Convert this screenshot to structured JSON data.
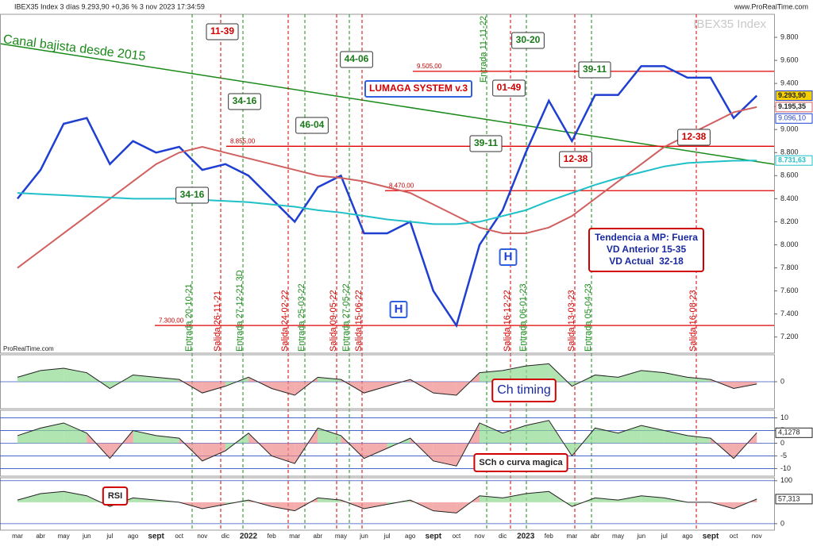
{
  "header": {
    "title": "IBEX35 Index 3 días 9.293,90 +0,36 % 3 nov 2023 17:34:59",
    "site": "www.ProRealTime.com",
    "watermark": "IBEX35 Index",
    "credit": "ProRealTime.com"
  },
  "chart_data": [
    {
      "type": "line",
      "categories": [
        "mar",
        "abr",
        "may",
        "jun",
        "jul",
        "ago",
        "sept",
        "oct",
        "nov",
        "dic",
        "2022",
        "feb",
        "mar",
        "abr",
        "may",
        "jun",
        "jul",
        "ago",
        "sept",
        "oct",
        "nov",
        "dic",
        "2023",
        "feb",
        "mar",
        "abr",
        "may",
        "jun",
        "jul",
        "ago",
        "sept",
        "oct",
        "nov"
      ],
      "series": [
        {
          "color": "#1f3fd0",
          "values": [
            8400,
            8650,
            9050,
            9100,
            8700,
            8900,
            8800,
            8850,
            8650,
            8700,
            8600,
            8400,
            8200,
            8500,
            8600,
            8100,
            8100,
            8200,
            7600,
            7300,
            8000,
            8300,
            8800,
            9250,
            8900,
            9300,
            9300,
            9550,
            9550,
            9450,
            9450,
            9100,
            9293.9
          ],
          "value_labels": [
            null,
            null,
            null,
            null,
            null,
            null,
            null,
            null,
            null,
            null,
            null,
            null,
            null,
            null,
            null,
            null,
            null,
            null,
            null,
            null,
            null,
            null,
            null,
            null,
            null,
            null,
            null,
            null,
            null,
            null,
            null,
            null,
            "9.293,90"
          ]
        },
        {
          "color": "#d06060",
          "values": [
            7800,
            7950,
            8100,
            8250,
            8400,
            8550,
            8700,
            8800,
            8850,
            8800,
            8750,
            8700,
            8650,
            8600,
            8580,
            8550,
            8500,
            8450,
            8350,
            8250,
            8150,
            8100,
            8100,
            8150,
            8250,
            8400,
            8550,
            8700,
            8850,
            8950,
            9050,
            9150,
            9195.35
          ],
          "value_labels": [
            null,
            null,
            null,
            null,
            null,
            null,
            null,
            null,
            null,
            null,
            null,
            null,
            null,
            null,
            null,
            null,
            null,
            null,
            null,
            null,
            null,
            null,
            null,
            null,
            null,
            null,
            null,
            null,
            null,
            null,
            null,
            null,
            "9.195,35"
          ]
        },
        {
          "color": "#20c0c8",
          "values": [
            8450,
            8440,
            8430,
            8420,
            8410,
            8400,
            8400,
            8400,
            8390,
            8380,
            8370,
            8350,
            8330,
            8300,
            8280,
            8250,
            8220,
            8200,
            8180,
            8180,
            8200,
            8250,
            8300,
            8380,
            8450,
            8520,
            8580,
            8630,
            8680,
            8710,
            8720,
            8730,
            8731.63
          ],
          "value_labels": [
            null,
            null,
            null,
            null,
            null,
            null,
            null,
            null,
            null,
            null,
            null,
            null,
            null,
            null,
            null,
            null,
            null,
            null,
            null,
            null,
            null,
            null,
            null,
            null,
            null,
            null,
            null,
            null,
            null,
            null,
            null,
            null,
            "8.731,63"
          ]
        }
      ],
      "ylim": [
        7060,
        10000
      ],
      "yticks": [
        {
          "value": 7200,
          "label": "7.200"
        },
        {
          "value": 7400,
          "label": "7.400"
        },
        {
          "value": 7600,
          "label": "7.600"
        },
        {
          "value": 7800,
          "label": "7.800"
        },
        {
          "value": 8000,
          "label": "8.000"
        },
        {
          "value": 8200,
          "label": "8.200"
        },
        {
          "value": 8400,
          "label": "8.400"
        },
        {
          "value": 8600,
          "label": "8.600"
        },
        {
          "value": 8800,
          "label": "8.800"
        },
        {
          "value": 9000,
          "label": "9.000"
        },
        {
          "value": 9200,
          "label": "9.200"
        },
        {
          "value": 9400,
          "label": "9.400"
        },
        {
          "value": 9600,
          "label": "9.600"
        },
        {
          "value": 9800,
          "label": "9.800"
        }
      ],
      "levels": [
        {
          "value": 9505,
          "label": "9.505,00"
        },
        {
          "value": 8855,
          "label": "8.855,00"
        },
        {
          "value": 8470,
          "label": "8.470,00"
        },
        {
          "value": 7300,
          "label": "7.300,00"
        }
      ],
      "price_labels": [
        {
          "value": 9096.1,
          "label": "9.096,10"
        }
      ],
      "annotations": [
        {
          "text": "Canal bajista desde 2015",
          "color": "#1a8a1a"
        },
        {
          "text": "11-39",
          "color": "#d00000"
        },
        {
          "text": "34-16",
          "color": "#1a7a1a"
        },
        {
          "text": "46-04",
          "color": "#1a7a1a"
        },
        {
          "text": "44-06",
          "color": "#1a7a1a"
        },
        {
          "text": "30-20",
          "color": "#1a7a1a"
        },
        {
          "text": "39-11",
          "color": "#1a7a1a"
        },
        {
          "text": "01-49",
          "color": "#d00000"
        },
        {
          "text": "LUMAGA SYSTEM v.3",
          "color": "#d00000"
        },
        {
          "text": "39-11",
          "color": "#1a7a1a"
        },
        {
          "text": "12-38",
          "color": "#d00000"
        },
        {
          "text": "12-38",
          "color": "#d00000"
        },
        {
          "text": "34-16",
          "color": "#1a7a1a"
        },
        {
          "text": "H",
          "color": "#1f3fd0"
        },
        {
          "text": "H",
          "color": "#1f3fd0"
        }
      ],
      "info_box": [
        "Tendencia a MP: Fuera",
        "VD Anterior 15-35",
        "VD Actual  32-18"
      ],
      "signals": [
        {
          "label": "Entrada 20-10-21",
          "color": "#1a8a1a"
        },
        {
          "label": "Salida 26-11-21",
          "color": "#d00000"
        },
        {
          "label": "Entrada 27-12-21 3D",
          "color": "#1a8a1a"
        },
        {
          "label": "Salida 24-02-22",
          "color": "#d00000"
        },
        {
          "label": "Entrada 25-03-22",
          "color": "#1a8a1a"
        },
        {
          "label": "Salida 09-05-22",
          "color": "#d00000"
        },
        {
          "label": "Entrada 27-05-22",
          "color": "#1a8a1a"
        },
        {
          "label": "Salida 15-06-22",
          "color": "#d00000"
        },
        {
          "label": "Entrada 11-11-22",
          "color": "#1a8a1a"
        },
        {
          "label": "Salida 16-12-22",
          "color": "#d00000"
        },
        {
          "label": "Entrada 06-01-23",
          "color": "#1a8a1a"
        },
        {
          "label": "Salida 13-03-23",
          "color": "#d00000"
        },
        {
          "label": "Entrada 05-04-23",
          "color": "#1a8a1a"
        },
        {
          "label": "Salida 16-08-23",
          "color": "#d00000"
        }
      ]
    },
    {
      "type": "area",
      "title": "Ch timing",
      "color": "#222222",
      "values": [
        0.2,
        0.5,
        0.6,
        0.4,
        -0.3,
        0.3,
        0.2,
        0.1,
        -0.5,
        -0.2,
        0.2,
        -0.3,
        -0.6,
        0.2,
        0.1,
        -0.5,
        -0.2,
        0.1,
        -0.5,
        -0.6,
        0.4,
        0.5,
        0.7,
        0.8,
        -0.2,
        0.3,
        0.2,
        0.5,
        0.4,
        0.2,
        0.1,
        -0.3,
        -0.1
      ],
      "ylim": [
        -1.2,
        1.2
      ],
      "yticks": [
        0
      ]
    },
    {
      "type": "area",
      "title": "SCh o curva magica",
      "color": "#222222",
      "values": [
        3,
        6,
        8,
        4,
        -6,
        5,
        3,
        2,
        -7,
        -3,
        4,
        -5,
        -8,
        6,
        3,
        -6,
        -2,
        2,
        -7,
        -9,
        8,
        4,
        7,
        9,
        -5,
        6,
        4,
        7,
        5,
        3,
        2,
        -6,
        4.1278
      ],
      "value_labels": [
        null,
        null,
        null,
        null,
        null,
        null,
        null,
        null,
        null,
        null,
        null,
        null,
        null,
        null,
        null,
        null,
        null,
        null,
        null,
        null,
        null,
        null,
        null,
        null,
        null,
        null,
        null,
        null,
        null,
        null,
        null,
        null,
        "4,1278"
      ],
      "ylim": [
        -13,
        13
      ],
      "yticks": [
        10,
        5,
        0,
        -5,
        -10
      ]
    },
    {
      "type": "area",
      "title": "RSI",
      "color": "#222222",
      "baseline": 50,
      "values": [
        55,
        70,
        75,
        65,
        40,
        60,
        55,
        50,
        35,
        45,
        55,
        40,
        30,
        60,
        55,
        35,
        45,
        55,
        30,
        25,
        65,
        60,
        70,
        75,
        40,
        60,
        55,
        65,
        60,
        50,
        50,
        35,
        57.313
      ],
      "value_labels": [
        null,
        null,
        null,
        null,
        null,
        null,
        null,
        null,
        null,
        null,
        null,
        null,
        null,
        null,
        null,
        null,
        null,
        null,
        null,
        null,
        null,
        null,
        null,
        null,
        null,
        null,
        null,
        null,
        null,
        null,
        null,
        null,
        "57,313"
      ],
      "ylim": [
        -15,
        107
      ],
      "yticks": [
        100,
        0
      ]
    }
  ]
}
